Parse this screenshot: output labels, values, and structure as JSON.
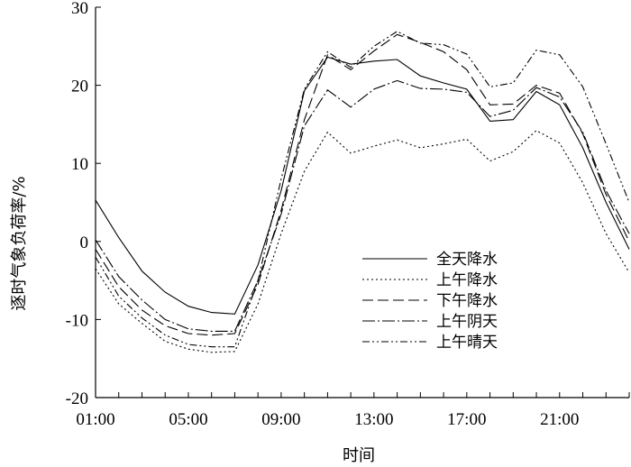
{
  "chart_data": {
    "type": "line",
    "xlabel": "时间",
    "ylabel": "逐时气象负荷率/%",
    "ylim": [
      -20,
      30
    ],
    "yticks": [
      "-20",
      "-10",
      "0",
      "10",
      "20",
      "30"
    ],
    "xticks": [
      "01:00",
      "05:00",
      "09:00",
      "13:00",
      "17:00",
      "21:00"
    ],
    "x": [
      1,
      2,
      3,
      4,
      5,
      6,
      7,
      8,
      9,
      10,
      11,
      12,
      13,
      14,
      15,
      16,
      17,
      18,
      19,
      20,
      21,
      22,
      23,
      24
    ],
    "grid": false,
    "legend_position": "center-right",
    "series": [
      {
        "name": "全天降水",
        "dash": "",
        "values": [
          5.3,
          0.5,
          -3.8,
          -6.5,
          -8.3,
          -9.1,
          -9.3,
          -3.0,
          6.5,
          19.3,
          23.6,
          22.7,
          23.1,
          23.3,
          21.2,
          20.3,
          19.5,
          15.4,
          15.6,
          19.2,
          17.5,
          12.0,
          5.0,
          -1.0
        ]
      },
      {
        "name": "上午降水",
        "dash": "2,3",
        "values": [
          -3.5,
          -8.0,
          -10.5,
          -12.8,
          -13.8,
          -14.2,
          -14.1,
          -8.0,
          1.0,
          9.0,
          14.0,
          11.3,
          12.2,
          13.0,
          12.0,
          12.5,
          13.1,
          10.3,
          11.5,
          14.2,
          12.6,
          7.5,
          1.0,
          -4.0
        ]
      },
      {
        "name": "下午降水",
        "dash": "12,5",
        "values": [
          -1.0,
          -5.8,
          -8.8,
          -10.8,
          -11.8,
          -12.0,
          -11.8,
          -5.5,
          4.0,
          15.6,
          23.9,
          22.0,
          24.4,
          26.5,
          25.5,
          24.3,
          22.0,
          17.5,
          17.6,
          20.0,
          19.0,
          13.8,
          6.0,
          0.0
        ]
      },
      {
        "name": "上午阴天",
        "dash": "14,3,2,3",
        "values": [
          0.2,
          -4.5,
          -7.5,
          -10.0,
          -11.2,
          -11.5,
          -11.5,
          -5.0,
          3.5,
          14.8,
          19.4,
          17.2,
          19.5,
          20.6,
          19.6,
          19.5,
          19.1,
          16.0,
          16.8,
          19.7,
          18.5,
          14.0,
          6.5,
          1.0
        ]
      },
      {
        "name": "上午晴天",
        "dash": "8,3,2,3,2,3",
        "values": [
          -2.0,
          -7.0,
          -9.8,
          -12.0,
          -13.2,
          -13.5,
          -13.5,
          -5.0,
          8.0,
          19.5,
          24.3,
          22.3,
          25.0,
          26.9,
          25.4,
          25.2,
          24.0,
          19.8,
          20.3,
          24.5,
          23.9,
          19.8,
          12.5,
          5.0
        ]
      }
    ]
  }
}
